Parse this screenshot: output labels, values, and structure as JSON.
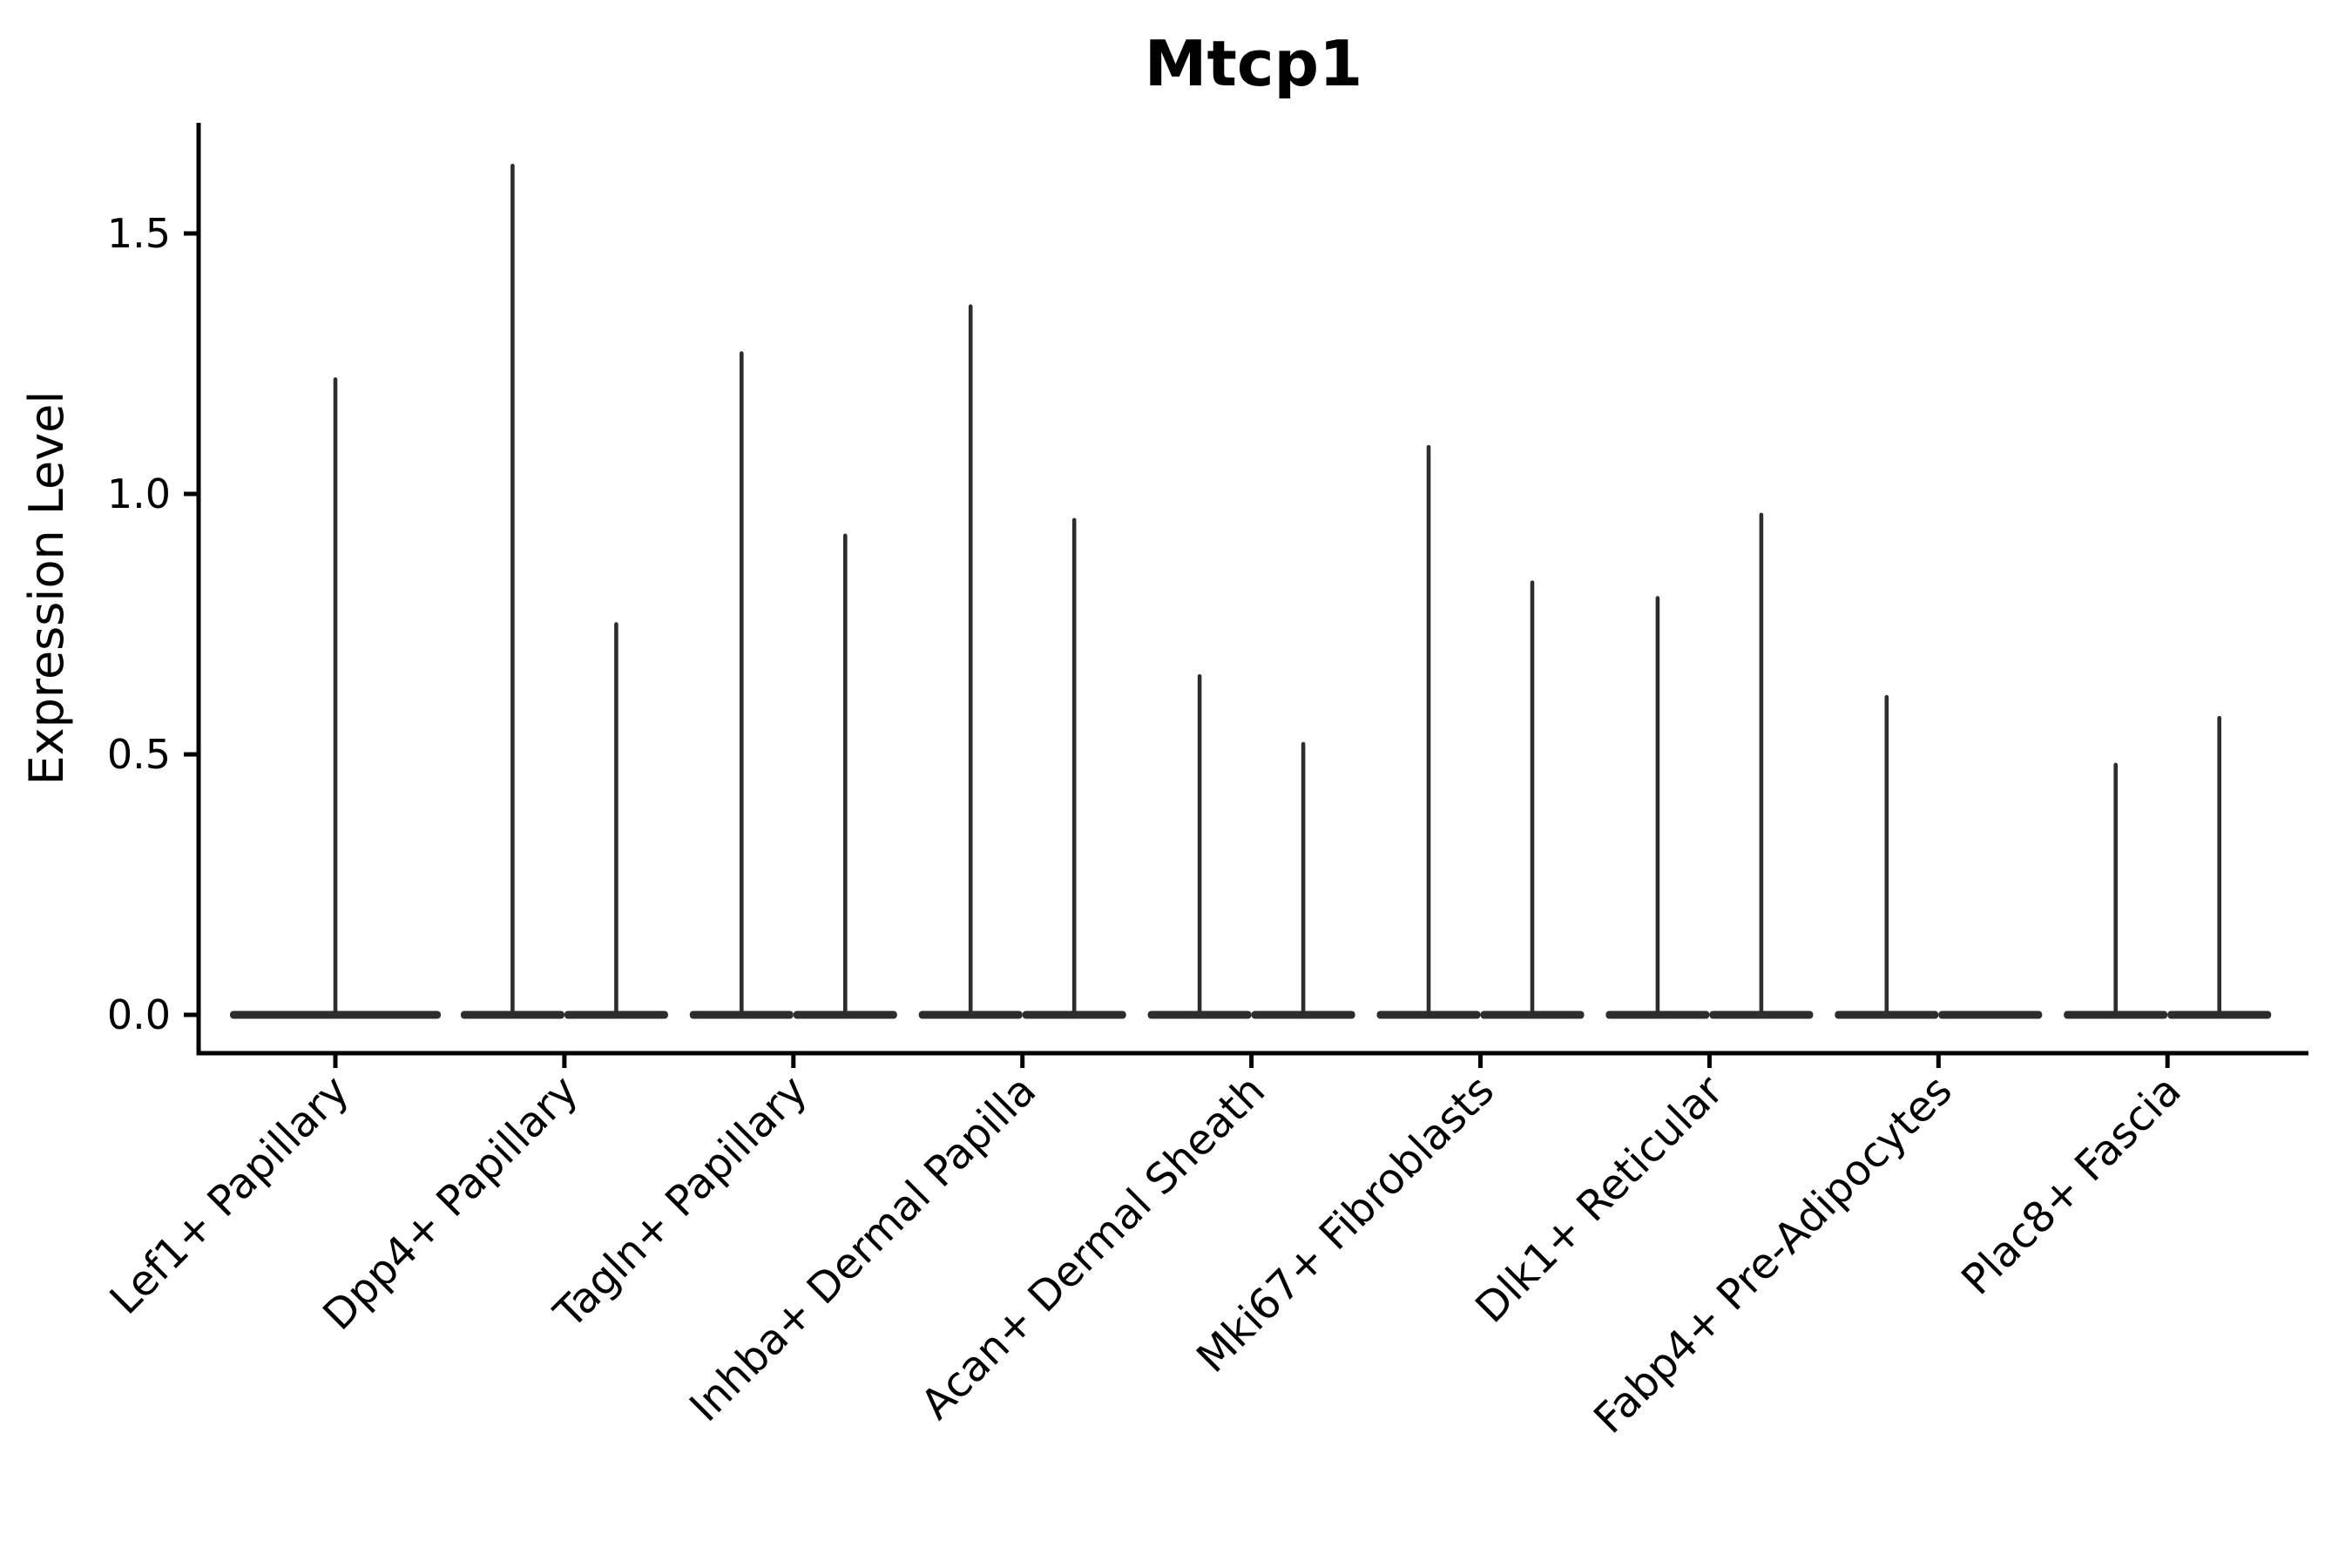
{
  "title": "Mtcp1",
  "axes": {
    "ylabel": "Expression Level",
    "ytick_labels": [
      "0.0",
      "0.5",
      "1.0",
      "1.5"
    ]
  },
  "colors": {
    "violin": "#2d2d2d",
    "axis": "#000000",
    "text": "#000000"
  },
  "chart_data": {
    "type": "violin",
    "title": "Mtcp1",
    "xlabel": "",
    "ylabel": "Expression Level",
    "ylim": [
      0,
      1.71
    ],
    "yticks": [
      0.0,
      0.5,
      1.0,
      1.5
    ],
    "grid": false,
    "legend": "none",
    "description": "Single-cell expression violin plot; violins are extremely narrow spikes rising from a flat dense mass at 0. Most categories contain two adjacent violins (left/right sub-groups); values are the maximum expression level reached by each spike.",
    "categories": [
      "Lef1+ Papillary",
      "Dpp4+ Papillary",
      "Tagln+ Papillary",
      "Inhba+ Dermal Papilla",
      "Acan+ Dermal Sheath",
      "Mki67+ Fibroblasts",
      "Dlk1+ Reticular",
      "Fabp4+ Pre-Adipocytes",
      "Plac8+ Fascia"
    ],
    "series": [
      {
        "label": "Lef1+ Papillary",
        "violins": [
          {
            "position": "full",
            "max": 1.22
          }
        ]
      },
      {
        "label": "Dpp4+ Papillary",
        "violins": [
          {
            "position": "left",
            "max": 1.63
          },
          {
            "position": "right",
            "max": 0.75
          }
        ]
      },
      {
        "label": "Tagln+ Papillary",
        "violins": [
          {
            "position": "left",
            "max": 1.27
          },
          {
            "position": "right",
            "max": 0.92
          }
        ]
      },
      {
        "label": "Inhba+ Dermal Papilla",
        "violins": [
          {
            "position": "left",
            "max": 1.36
          },
          {
            "position": "right",
            "max": 0.95
          }
        ]
      },
      {
        "label": "Acan+ Dermal Sheath",
        "violins": [
          {
            "position": "left",
            "max": 0.65
          },
          {
            "position": "right",
            "max": 0.52
          }
        ]
      },
      {
        "label": "Mki67+ Fibroblasts",
        "violins": [
          {
            "position": "left",
            "max": 1.09
          },
          {
            "position": "right",
            "max": 0.83
          }
        ]
      },
      {
        "label": "Dlk1+ Reticular",
        "violins": [
          {
            "position": "left",
            "max": 0.8
          },
          {
            "position": "right",
            "max": 0.96
          }
        ]
      },
      {
        "label": "Fabp4+ Pre-Adipocytes",
        "violins": [
          {
            "position": "left",
            "max": 0.61
          },
          {
            "position": "right",
            "max": 0.0
          }
        ]
      },
      {
        "label": "Plac8+ Fascia",
        "violins": [
          {
            "position": "left",
            "max": 0.48
          },
          {
            "position": "right",
            "max": 0.57
          }
        ]
      }
    ]
  }
}
